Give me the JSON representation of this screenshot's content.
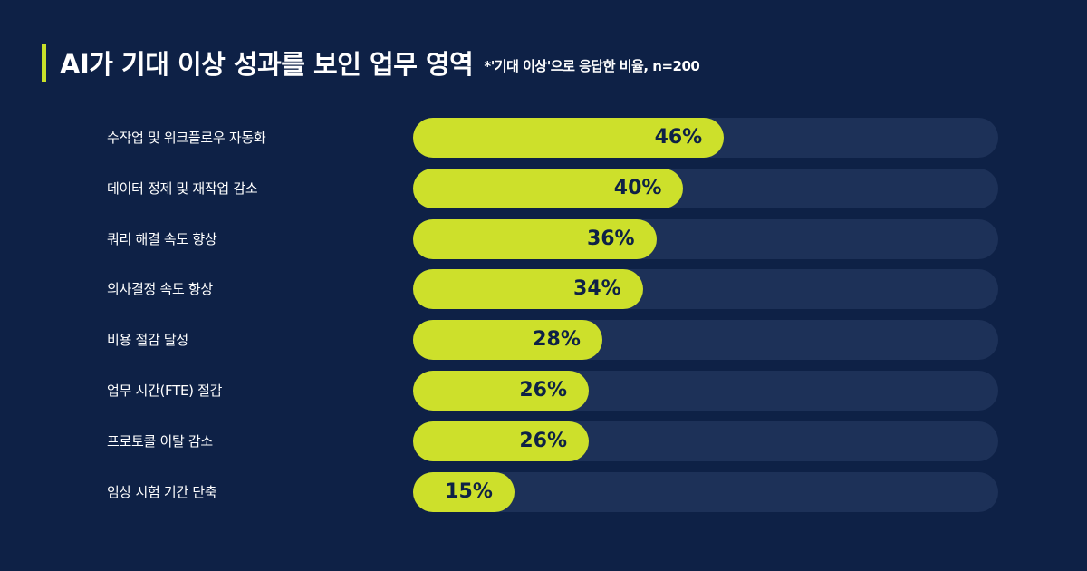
{
  "header": {
    "title": "AI가 기대 이상 성과를 보인 업무 영역",
    "subtitle": "*'기대 이상'으로 응답한 비율, n=200"
  },
  "colors": {
    "background": "#0e2146",
    "bar_fill": "#cde02b",
    "bar_track": "#1d3158",
    "accent": "#c8e02a",
    "value_text": "#0e2146"
  },
  "chart_data": {
    "type": "bar",
    "orientation": "horizontal",
    "categories": [
      "수작업 및 워크플로우 자동화",
      "데이터 정제 및 재작업 감소",
      "쿼리 해결 속도 향상",
      "의사결정 속도 향상",
      "비용 절감 달성",
      "업무 시간(FTE) 절감",
      "프로토콜 이탈 감소",
      "임상 시험 기간 단축"
    ],
    "values": [
      46,
      40,
      36,
      34,
      28,
      26,
      26,
      15
    ],
    "value_labels": [
      "46%",
      "40%",
      "36%",
      "34%",
      "28%",
      "26%",
      "26%",
      "15%"
    ],
    "title": "AI가 기대 이상 성과를 보인 업무 영역",
    "subtitle": "*'기대 이상'으로 응답한 비율, n=200",
    "xlabel": "",
    "ylabel": "",
    "xlim": [
      0,
      100
    ],
    "grid": false,
    "legend": "none"
  }
}
